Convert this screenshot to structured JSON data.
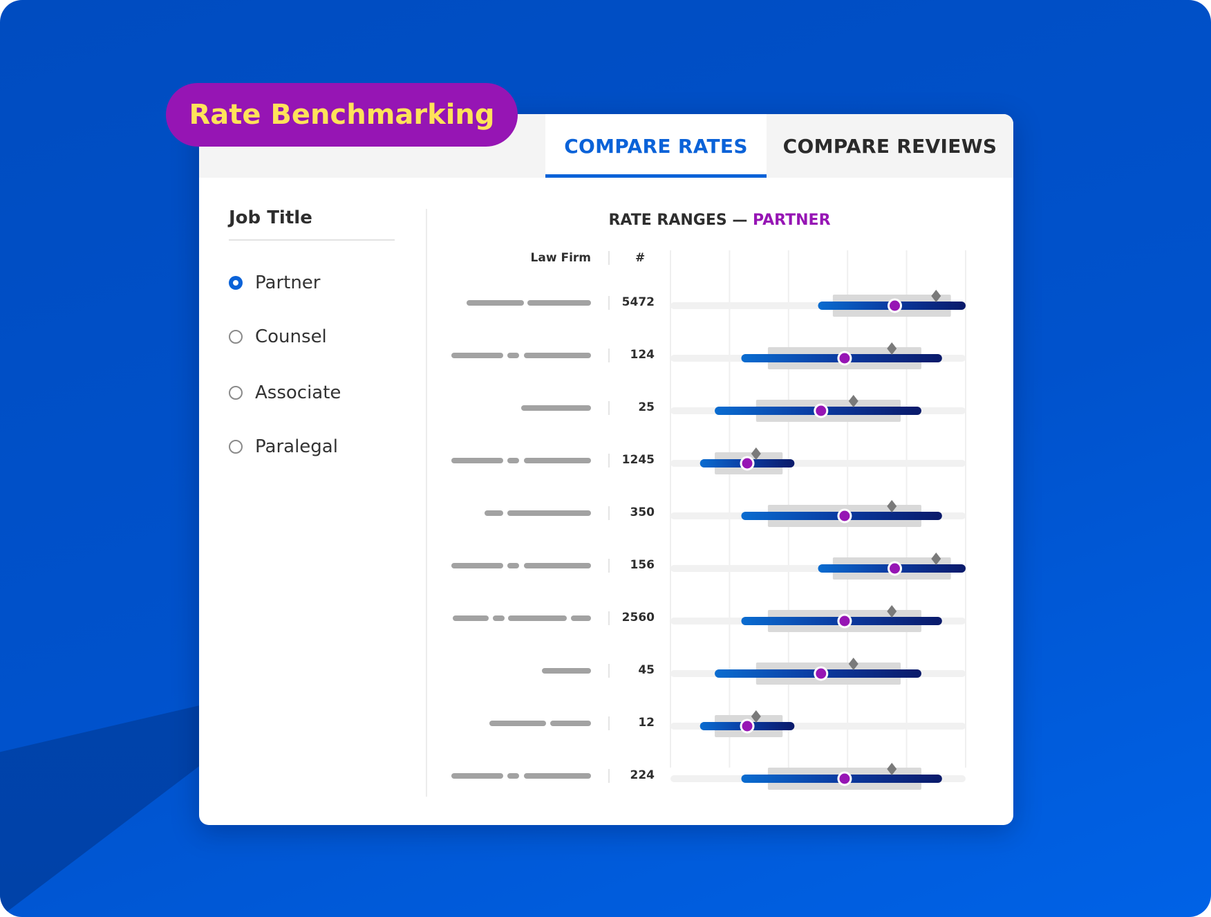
{
  "badge": "Rate Benchmarking",
  "tabs": [
    {
      "label": "COMPARE RATES",
      "active": true
    },
    {
      "label": "COMPARE REVIEWS",
      "active": false
    }
  ],
  "filters": {
    "heading": "Job Title",
    "options": [
      {
        "label": "Partner",
        "selected": true
      },
      {
        "label": "Counsel",
        "selected": false
      },
      {
        "label": "Associate",
        "selected": false
      },
      {
        "label": "Paralegal",
        "selected": false
      }
    ]
  },
  "colors": {
    "accent": "#0a62d8",
    "brand_purple": "#9615b4",
    "badge_text": "#ffe25a",
    "bar_start": "#0a6cd0",
    "bar_end": "#0a1a6a",
    "median": "#9615b4",
    "box": "#d9d9d9",
    "diamond": "#7a7a7a"
  },
  "chart_data": {
    "type": "range",
    "title_prefix": "RATE RANGES — ",
    "title_highlight": "PARTNER",
    "columns": {
      "firm": "Law Firm",
      "count": "#"
    },
    "axis": {
      "range": [
        0,
        100
      ],
      "gridlines": 6,
      "tick_labels": false
    },
    "rows": [
      {
        "firm": "redacted",
        "count": "5472",
        "min": 50,
        "max": 100,
        "q1": 55,
        "q3": 95,
        "median": 76,
        "marker": 90
      },
      {
        "firm": "redacted",
        "count": "124",
        "min": 24,
        "max": 92,
        "q1": 33,
        "q3": 85,
        "median": 59,
        "marker": 75
      },
      {
        "firm": "redacted",
        "count": "25",
        "min": 15,
        "max": 85,
        "q1": 29,
        "q3": 78,
        "median": 51,
        "marker": 62
      },
      {
        "firm": "redacted",
        "count": "1245",
        "min": 10,
        "max": 42,
        "q1": 15,
        "q3": 38,
        "median": 26,
        "marker": 29
      },
      {
        "firm": "redacted",
        "count": "350",
        "min": 24,
        "max": 92,
        "q1": 33,
        "q3": 85,
        "median": 59,
        "marker": 75
      },
      {
        "firm": "redacted",
        "count": "156",
        "min": 50,
        "max": 100,
        "q1": 55,
        "q3": 95,
        "median": 76,
        "marker": 90
      },
      {
        "firm": "redacted",
        "count": "2560",
        "min": 24,
        "max": 92,
        "q1": 33,
        "q3": 85,
        "median": 59,
        "marker": 75
      },
      {
        "firm": "redacted",
        "count": "45",
        "min": 15,
        "max": 85,
        "q1": 29,
        "q3": 78,
        "median": 51,
        "marker": 62
      },
      {
        "firm": "redacted",
        "count": "12",
        "min": 10,
        "max": 42,
        "q1": 15,
        "q3": 38,
        "median": 26,
        "marker": 29
      },
      {
        "firm": "redacted",
        "count": "224",
        "min": 24,
        "max": 92,
        "q1": 33,
        "q3": 85,
        "median": 59,
        "marker": 75
      }
    ]
  }
}
